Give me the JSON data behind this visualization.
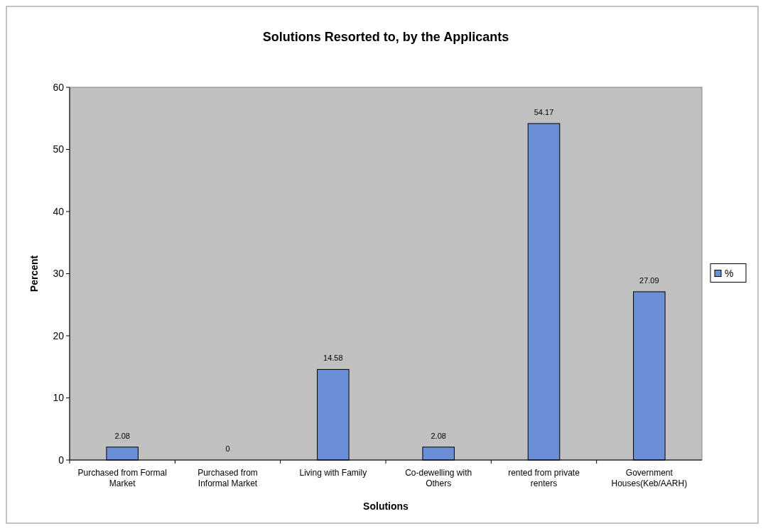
{
  "chart_data": {
    "type": "bar",
    "title": "Solutions Resorted to, by the Applicants",
    "xlabel": "Solutions",
    "ylabel": "Percent",
    "categories": [
      "Purchased from Formal Market",
      "Purchased from Informal Market",
      "Living with Family",
      "Co-dewelling with Others",
      "rented from private renters",
      "Government Houses(Keb/AARH)"
    ],
    "series": [
      {
        "name": "%",
        "color": "#6a8fd6",
        "values": [
          2.08,
          0,
          14.58,
          2.08,
          54.17,
          27.09
        ]
      }
    ],
    "ylim": [
      0,
      60
    ],
    "yticks": [
      0,
      10,
      20,
      30,
      40,
      50,
      60
    ],
    "data_labels": true,
    "legend": "right",
    "grid": false
  }
}
